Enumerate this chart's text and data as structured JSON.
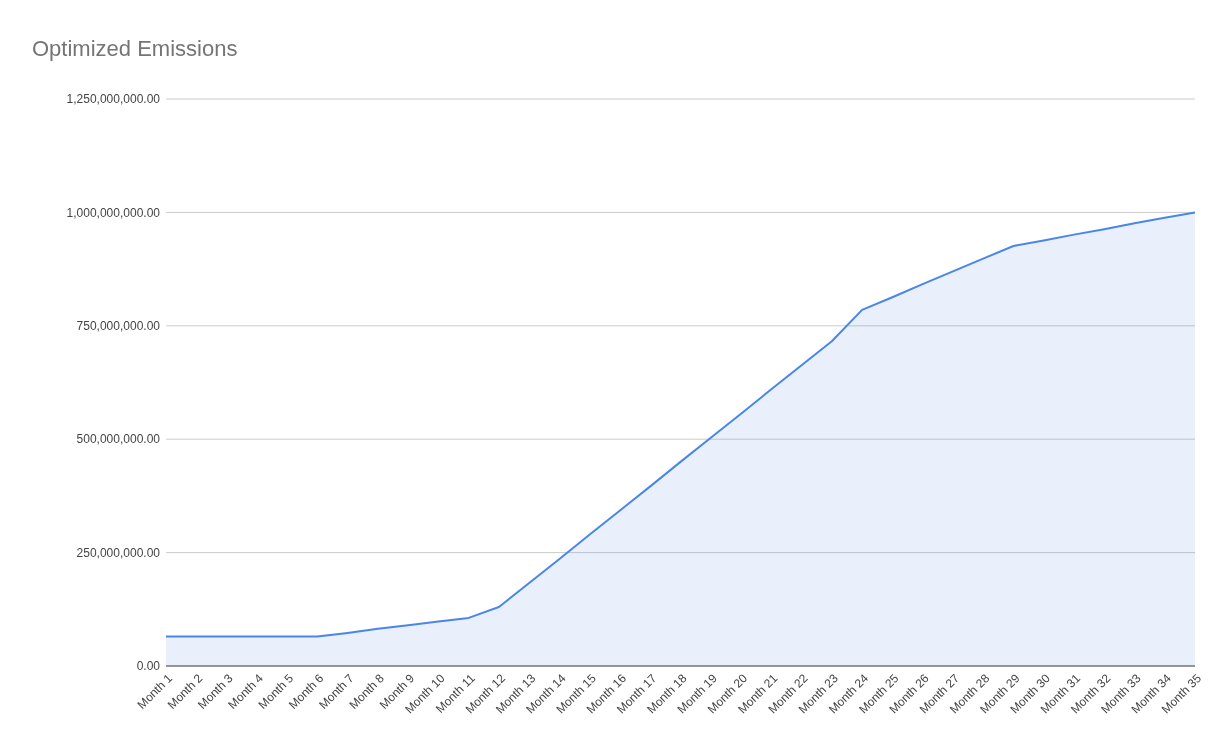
{
  "chart_data": {
    "type": "area",
    "title": "Optimized Emissions",
    "categories": [
      "Month 1",
      "Month 2",
      "Month 3",
      "Month 4",
      "Month 5",
      "Month 6",
      "Month 7",
      "Month 8",
      "Month 9",
      "Month 10",
      "Month 11",
      "Month 12",
      "Month 13",
      "Month 14",
      "Month 15",
      "Month 16",
      "Month 17",
      "Month 18",
      "Month 19",
      "Month 20",
      "Month 21",
      "Month 22",
      "Month 23",
      "Month 24",
      "Month 25",
      "Month 26",
      "Month 27",
      "Month 28",
      "Month 29",
      "Month 30",
      "Month 31",
      "Month 32",
      "Month 33",
      "Month 34",
      "Month 35"
    ],
    "series": [
      {
        "color": "#4a86e8",
        "values": [
          65000000,
          65000000,
          65000000,
          65000000,
          65000000,
          65000000,
          73000000,
          82000000,
          90000000,
          98000000,
          106000000,
          130000000,
          183000000,
          236000000,
          290000000,
          343000000,
          396000000,
          450000000,
          503000000,
          556000000,
          610000000,
          663000000,
          716000000,
          785000000,
          813000000,
          842000000,
          870000000,
          898000000,
          926000000,
          938000000,
          951000000,
          963000000,
          976000000,
          988000000,
          1000000000
        ]
      }
    ],
    "ylim": [
      0,
      1250000000
    ],
    "yticks": [
      {
        "value": 0,
        "label": "0.00"
      },
      {
        "value": 250000000,
        "label": "250,000,000.00"
      },
      {
        "value": 500000000,
        "label": "500,000,000.00"
      },
      {
        "value": 750000000,
        "label": "750,000,000.00"
      },
      {
        "value": 1000000000,
        "label": "1,000,000,000.00"
      },
      {
        "value": 1250000000,
        "label": "1,250,000,000.00"
      }
    ],
    "grid": "y"
  }
}
